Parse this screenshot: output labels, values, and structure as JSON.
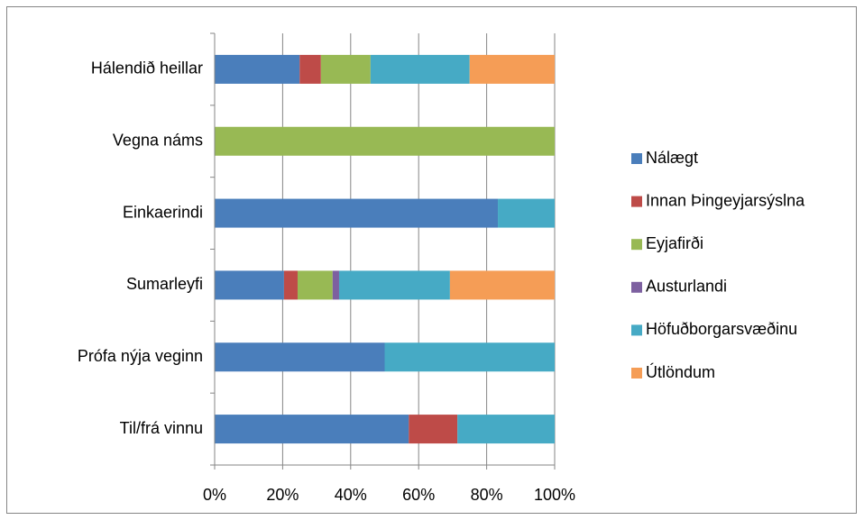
{
  "chart_data": {
    "type": "stacked_bar_horizontal",
    "categories": [
      "Hálendið heillar",
      "Vegna náms",
      "Einkaerindi",
      "Sumarleyfi",
      "Prófa nýja veginn",
      "Til/frá vinnu"
    ],
    "series": [
      {
        "name": "Nálægt",
        "color": "#4a7ebb",
        "values": [
          25,
          0,
          83.3,
          20.4,
          50,
          57.1
        ]
      },
      {
        "name": "Innan Þingeyjarsýslna",
        "color": "#be4b48",
        "values": [
          6.25,
          0,
          0,
          4,
          0,
          14.3
        ]
      },
      {
        "name": "Eyjafirði",
        "color": "#98b954",
        "values": [
          14.6,
          100,
          0,
          10.3,
          0,
          0
        ]
      },
      {
        "name": "Austurlandi",
        "color": "#7d60a0",
        "values": [
          0,
          0,
          0,
          1.9,
          0,
          0
        ]
      },
      {
        "name": "Höfuðborgarsvæðinu",
        "color": "#46aac5",
        "values": [
          29.15,
          0,
          16.7,
          32.6,
          50,
          28.6
        ]
      },
      {
        "name": "Útlöndum",
        "color": "#f59d56",
        "values": [
          25,
          0,
          0,
          30.8,
          0,
          0
        ]
      }
    ],
    "xlim": [
      0,
      100
    ],
    "xticks": [
      {
        "value": 0,
        "label": "0%"
      },
      {
        "value": 20,
        "label": "20%"
      },
      {
        "value": 40,
        "label": "40%"
      },
      {
        "value": 60,
        "label": "60%"
      },
      {
        "value": 80,
        "label": "80%"
      },
      {
        "value": 100,
        "label": "100%"
      }
    ],
    "grid": true,
    "legend": "right"
  }
}
